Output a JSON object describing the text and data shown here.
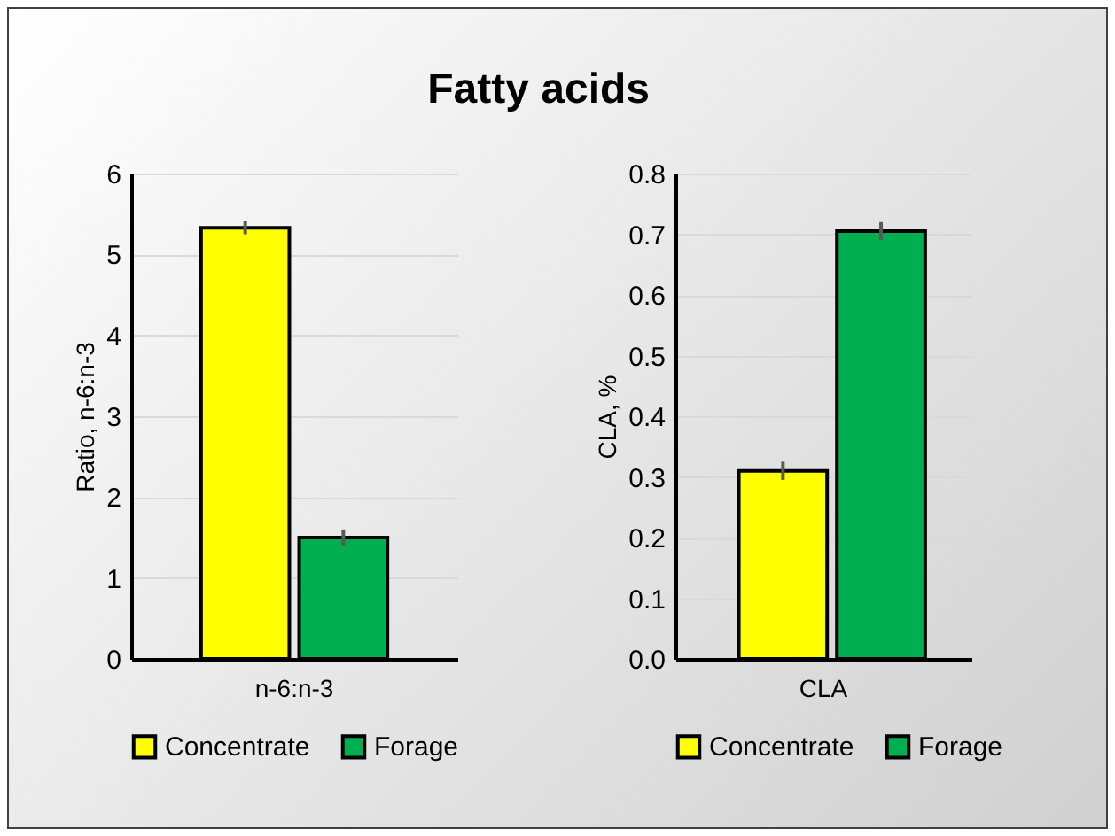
{
  "chart_data": [
    {
      "type": "bar",
      "title": "Fatty acids",
      "categories": [
        "n-6:n-3"
      ],
      "ylabel": "Ratio, n-6:n-3",
      "ylim": [
        0,
        6
      ],
      "yticks": [
        0,
        1,
        2,
        3,
        4,
        5,
        6
      ],
      "grid": "y",
      "legend": "bottom",
      "series": [
        {
          "name": "Concentrate",
          "color": "#ffff00",
          "values": [
            5.33
          ],
          "errors": [
            0.08
          ]
        },
        {
          "name": "Forage",
          "color": "#00b050",
          "values": [
            1.5
          ],
          "errors": [
            0.1
          ]
        }
      ]
    },
    {
      "type": "bar",
      "categories": [
        "CLA"
      ],
      "ylabel": "CLA, %",
      "ylim": [
        0,
        0.8
      ],
      "yticks": [
        {
          "value": 0,
          "label": "0.0"
        },
        0.1,
        0.2,
        0.3,
        0.4,
        0.5,
        0.6,
        0.7,
        0.8
      ],
      "grid": "y",
      "legend": "bottom",
      "series": [
        {
          "name": "Concentrate",
          "color": "#ffff00",
          "values": [
            0.31
          ],
          "errors": [
            0.015
          ]
        },
        {
          "name": "Forage",
          "color": "#00b050",
          "values": [
            0.705
          ],
          "errors": [
            0.015
          ]
        }
      ]
    }
  ]
}
